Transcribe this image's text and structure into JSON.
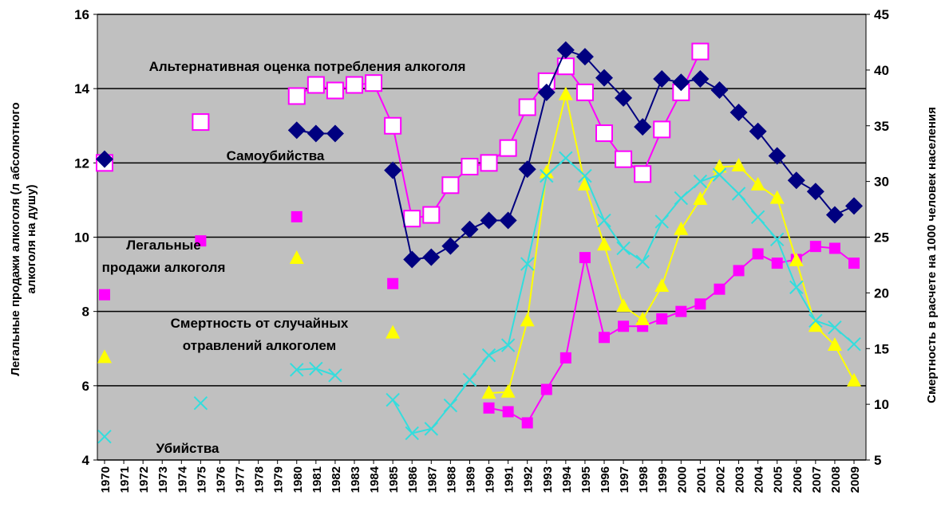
{
  "chart_data": {
    "type": "line",
    "ylabel": [
      "Легальные продажи алкоголя (л абсолютного",
      "алкоголя на душу)"
    ],
    "y2label": "Смертность в расчете на 1000 человек населения",
    "categories": [
      "1970",
      "1971",
      "1972",
      "1973",
      "1974",
      "1975",
      "1976",
      "1977",
      "1978",
      "1979",
      "1980",
      "1981",
      "1982",
      "1983",
      "1984",
      "1985",
      "1986",
      "1987",
      "1988",
      "1989",
      "1990",
      "1991",
      "1992",
      "1993",
      "1994",
      "1995",
      "1996",
      "1997",
      "1998",
      "1999",
      "2000",
      "2001",
      "2002",
      "2003",
      "2004",
      "2005",
      "2006",
      "2007",
      "2008",
      "2009"
    ],
    "ylim": [
      4,
      16
    ],
    "yticks": [
      4,
      6,
      8,
      10,
      12,
      14,
      16
    ],
    "y2lim": [
      5,
      45
    ],
    "y2ticks": [
      5,
      10,
      15,
      20,
      25,
      30,
      35,
      40,
      45
    ],
    "grid": true,
    "series": [
      {
        "name": [
          "Альтернативная оценка потребления алкоголя"
        ],
        "color": "#ff00ff",
        "marker": "open-square",
        "values": [
          12.0,
          null,
          null,
          null,
          null,
          13.1,
          null,
          null,
          null,
          null,
          13.8,
          14.1,
          13.95,
          14.1,
          14.15,
          13.0,
          10.5,
          10.6,
          11.4,
          11.9,
          12.0,
          12.4,
          13.5,
          14.2,
          14.6,
          13.9,
          12.8,
          12.1,
          11.7,
          12.9,
          13.9,
          15.0,
          null,
          null,
          null,
          null,
          null,
          null,
          null,
          null
        ]
      },
      {
        "name": [
          "Самоубийства"
        ],
        "color": "#000080",
        "marker": "diamond",
        "axis": "y2",
        "values": [
          32.0,
          null,
          null,
          null,
          null,
          null,
          null,
          null,
          null,
          null,
          34.6,
          34.3,
          34.3,
          null,
          null,
          31.0,
          23.0,
          23.2,
          24.2,
          25.7,
          26.5,
          26.5,
          31.1,
          38.0,
          41.8,
          41.2,
          39.3,
          37.5,
          34.9,
          39.2,
          38.9,
          39.2,
          38.2,
          36.2,
          34.5,
          32.3,
          30.1,
          29.1,
          27.0,
          27.8
        ]
      },
      {
        "name": [
          "Легальные",
          "продажи алкоголя"
        ],
        "color": "#ff00ff",
        "marker": "square",
        "values": [
          8.45,
          null,
          null,
          null,
          null,
          9.9,
          null,
          null,
          null,
          null,
          10.55,
          null,
          null,
          null,
          null,
          8.75,
          null,
          null,
          null,
          null,
          5.4,
          5.3,
          5.0,
          5.9,
          6.75,
          9.45,
          7.3,
          7.6,
          7.6,
          7.8,
          8.0,
          8.2,
          8.6,
          9.1,
          9.55,
          9.3,
          9.4,
          9.75,
          9.7,
          9.3
        ]
      },
      {
        "name": [
          "Смертность от случайных",
          "отравлений алкоголем"
        ],
        "color": "#ffff00",
        "marker": "triangle",
        "axis": "y2",
        "values": [
          14.2,
          null,
          null,
          null,
          null,
          null,
          null,
          null,
          null,
          null,
          23.1,
          null,
          null,
          null,
          null,
          16.4,
          null,
          null,
          null,
          null,
          11.0,
          11.1,
          17.5,
          30.8,
          37.8,
          29.7,
          24.3,
          18.8,
          17.6,
          20.6,
          25.7,
          28.4,
          31.3,
          31.4,
          29.7,
          28.5,
          22.9,
          17.0,
          15.3,
          12.1
        ]
      },
      {
        "name": [
          "Убийства"
        ],
        "color": "#33dddd",
        "marker": "x",
        "axis": "y2",
        "values": [
          7.1,
          null,
          null,
          null,
          null,
          10.1,
          null,
          null,
          null,
          null,
          13.1,
          13.2,
          12.6,
          null,
          null,
          10.4,
          7.4,
          7.8,
          9.9,
          12.2,
          14.4,
          15.3,
          22.6,
          30.5,
          32.1,
          30.5,
          26.5,
          24.0,
          22.8,
          26.4,
          28.5,
          30.0,
          30.6,
          28.9,
          26.8,
          24.8,
          20.5,
          17.5,
          16.9,
          15.4
        ]
      }
    ]
  }
}
